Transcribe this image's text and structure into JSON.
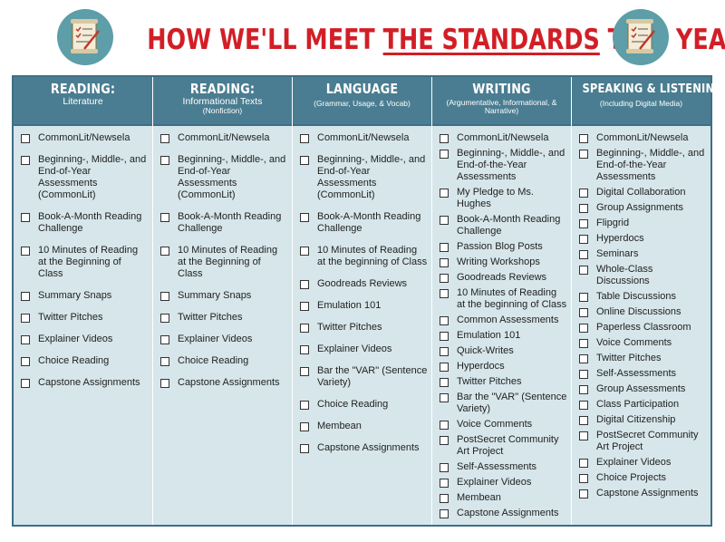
{
  "title": {
    "pre": "HOW WE'LL MEET ",
    "underlined": "THE STANDARDS",
    "post": " THIS YEAR"
  },
  "columns": [
    {
      "title": "READING:",
      "subtitle": "Literature",
      "subtitle2": "",
      "items": [
        "CommonLit/Newsela",
        "Beginning-, Middle-, and End-of-Year Assessments (CommonLit)",
        "Book-A-Month Reading Challenge",
        "10 Minutes of Reading at the Beginning of Class",
        "Summary Snaps",
        "Twitter Pitches",
        "Explainer Videos",
        "Choice Reading",
        "Capstone Assignments"
      ]
    },
    {
      "title": "READING:",
      "subtitle": "Informational Texts",
      "subtitle2": "(Nonfiction)",
      "items": [
        "CommonLit/Newsela",
        "Beginning-, Middle-, and End-of-Year Assessments (CommonLit)",
        "Book-A-Month Reading Challenge",
        "10 Minutes of Reading at the Beginning of Class",
        "Summary Snaps",
        "Twitter Pitches",
        "Explainer Videos",
        "Choice Reading",
        "Capstone Assignments"
      ]
    },
    {
      "title": "LANGUAGE",
      "subtitle": "",
      "subtitle2": "(Grammar, Usage, & Vocab)",
      "items": [
        "CommonLit/Newsela",
        "Beginning-, Middle-, and End-of-Year Assessments (CommonLit)",
        "Book-A-Month Reading Challenge",
        "10 Minutes of Reading at the beginning of Class",
        "Goodreads Reviews",
        "Emulation 101",
        "Twitter Pitches",
        "Explainer Videos",
        "Bar the \"VAR\" (Sentence Variety)",
        "Choice Reading",
        "Membean",
        "Capstone Assignments"
      ]
    },
    {
      "title": "WRITING",
      "subtitle": "",
      "subtitle2": "(Argumentative, Informational, & Narrative)",
      "items": [
        "CommonLit/Newsela",
        "Beginning-, Middle-, and End-of-the-Year Assessments",
        "My Pledge to Ms. Hughes",
        "Book-A-Month Reading Challenge",
        "Passion Blog Posts",
        "Writing Workshops",
        "Goodreads Reviews",
        "10 Minutes of Reading at the beginning of Class",
        "Common Assessments",
        "Emulation 101",
        "Quick-Writes",
        "Hyperdocs",
        "Twitter Pitches",
        "Bar the \"VAR\" (Sentence Variety)",
        "Voice Comments",
        "PostSecret Community Art Project",
        "Self-Assessments",
        "Explainer Videos",
        "Membean",
        "Capstone Assignments"
      ]
    },
    {
      "title": "SPEAKING & LISTENING",
      "subtitle": "",
      "subtitle2": "(Including Digital Media)",
      "items": [
        "CommonLit/Newsela",
        "Beginning-, Middle-, and End-of-the-Year Assessments",
        "Digital Collaboration",
        "Group Assignments",
        "Flipgrid",
        "Hyperdocs",
        "Seminars",
        "Whole-Class Discussions",
        "Table Discussions",
        "Online Discussions",
        "Paperless Classroom",
        "Voice Comments",
        "Twitter Pitches",
        "Self-Assessments",
        "Group Assessments",
        "Class Participation",
        "Digital Citizenship",
        "PostSecret Community Art Project",
        "Explainer Videos",
        "Choice Projects",
        "Capstone Assignments"
      ]
    }
  ]
}
